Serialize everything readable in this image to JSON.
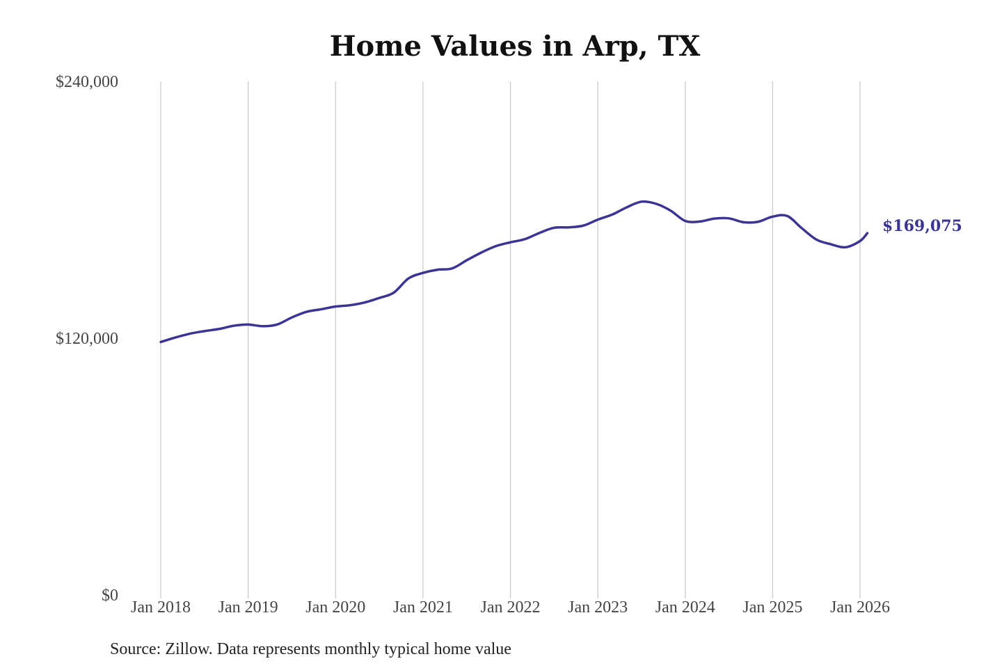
{
  "colors": {
    "line": "#3a3593",
    "grid": "#c8c8c8"
  },
  "chart_data": {
    "type": "line",
    "title": "Home Values in Arp, TX",
    "xlabel": "",
    "ylabel": "",
    "grid": "vertical gridlines at each January",
    "ylim": [
      0,
      240000
    ],
    "xlim": [
      "2018-01",
      "2026-01"
    ],
    "y_ticks": [
      {
        "value": 0,
        "label": "$0"
      },
      {
        "value": 120000,
        "label": "$120,000"
      },
      {
        "value": 240000,
        "label": "$240,000"
      }
    ],
    "x_ticks": [
      {
        "value": "2018-01",
        "label": "Jan 2018"
      },
      {
        "value": "2019-01",
        "label": "Jan 2019"
      },
      {
        "value": "2020-01",
        "label": "Jan 2020"
      },
      {
        "value": "2021-01",
        "label": "Jan 2021"
      },
      {
        "value": "2022-01",
        "label": "Jan 2022"
      },
      {
        "value": "2023-01",
        "label": "Jan 2023"
      },
      {
        "value": "2024-01",
        "label": "Jan 2024"
      },
      {
        "value": "2025-01",
        "label": "Jan 2025"
      },
      {
        "value": "2026-01",
        "label": "Jan 2026"
      }
    ],
    "series": [
      {
        "points": [
          [
            "2018-01",
            118200
          ],
          [
            "2018-03",
            120300
          ],
          [
            "2018-05",
            122100
          ],
          [
            "2018-07",
            123300
          ],
          [
            "2018-09",
            124300
          ],
          [
            "2018-11",
            125800
          ],
          [
            "2019-01",
            126400
          ],
          [
            "2019-03",
            125600
          ],
          [
            "2019-05",
            126400
          ],
          [
            "2019-07",
            129700
          ],
          [
            "2019-09",
            132300
          ],
          [
            "2019-11",
            133500
          ],
          [
            "2020-01",
            134800
          ],
          [
            "2020-03",
            135400
          ],
          [
            "2020-05",
            136700
          ],
          [
            "2020-07",
            138800
          ],
          [
            "2020-09",
            141300
          ],
          [
            "2020-11",
            147900
          ],
          [
            "2021-01",
            150500
          ],
          [
            "2021-03",
            152000
          ],
          [
            "2021-05",
            152600
          ],
          [
            "2021-07",
            156400
          ],
          [
            "2021-09",
            160000
          ],
          [
            "2021-11",
            163000
          ],
          [
            "2022-01",
            164800
          ],
          [
            "2022-03",
            166300
          ],
          [
            "2022-05",
            169200
          ],
          [
            "2022-07",
            171600
          ],
          [
            "2022-09",
            171800
          ],
          [
            "2022-11",
            172600
          ],
          [
            "2023-01",
            175400
          ],
          [
            "2023-03",
            177800
          ],
          [
            "2023-05",
            181200
          ],
          [
            "2023-07",
            183800
          ],
          [
            "2023-09",
            182800
          ],
          [
            "2023-11",
            179600
          ],
          [
            "2024-01",
            174800
          ],
          [
            "2024-03",
            174500
          ],
          [
            "2024-05",
            175900
          ],
          [
            "2024-07",
            176000
          ],
          [
            "2024-09",
            174200
          ],
          [
            "2024-11",
            174400
          ],
          [
            "2025-01",
            176800
          ],
          [
            "2025-03",
            177100
          ],
          [
            "2025-05",
            171400
          ],
          [
            "2025-07",
            166100
          ],
          [
            "2025-09",
            163900
          ],
          [
            "2025-11",
            162500
          ],
          [
            "2026-01",
            165400
          ],
          [
            "2026-02",
            169075
          ]
        ]
      }
    ],
    "end_label": "$169,075",
    "source": "Source: Zillow. Data represents monthly typical home value"
  }
}
